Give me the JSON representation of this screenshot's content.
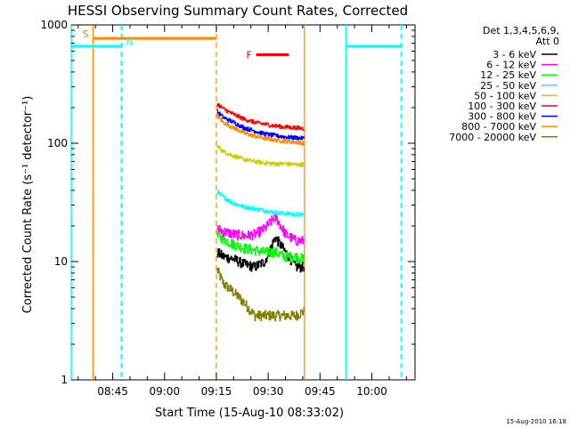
{
  "chart_data": {
    "type": "line",
    "title": "HESSI Observing Summary Count Rates, Corrected",
    "xlabel": "Start Time (15-Aug-10 08:33:02)",
    "ylabel": "Corrected Count Rate (s⁻¹ detector⁻¹)",
    "y_scale": "log",
    "ylim": [
      1,
      1000
    ],
    "y_ticks": [
      {
        "value": 1,
        "label": "1"
      },
      {
        "value": 10,
        "label": "10"
      },
      {
        "value": 100,
        "label": "100"
      },
      {
        "value": 1000,
        "label": "1000"
      }
    ],
    "x_ticks_minutes": [
      {
        "value": 525,
        "label": "08:45"
      },
      {
        "value": 540,
        "label": "09:00"
      },
      {
        "value": 555,
        "label": "09:15"
      },
      {
        "value": 570,
        "label": "09:30"
      },
      {
        "value": 585,
        "label": "09:45"
      },
      {
        "value": 600,
        "label": "10:00"
      }
    ],
    "xlim_minutes": [
      513.0,
      612.5
    ],
    "legend": {
      "header": [
        "Det 1,3,4,5,6,9,",
        "Att 0"
      ],
      "placement": "right-outside"
    },
    "series": [
      {
        "name": "3 - 6 keV",
        "color": "#000000",
        "x": [
          555.2,
          557,
          560,
          563,
          566,
          569,
          572,
          575,
          578,
          580.3
        ],
        "y": [
          12,
          11,
          10.5,
          9.5,
          9,
          10,
          16,
          12,
          9,
          9
        ]
      },
      {
        "name": "6 - 12 keV",
        "color": "#ff00ff",
        "x": [
          555.2,
          557,
          560,
          563,
          566,
          569,
          572,
          575,
          578,
          580.3
        ],
        "y": [
          19,
          18,
          17,
          16.5,
          17,
          19,
          24,
          17,
          15,
          15
        ]
      },
      {
        "name": "12 - 25 keV",
        "color": "#00ff00",
        "x": [
          555.2,
          557,
          560,
          563,
          566,
          569,
          572,
          575,
          578,
          580.3
        ],
        "y": [
          16.5,
          15.5,
          14,
          13,
          12.5,
          12,
          12,
          11,
          11,
          10.5
        ]
      },
      {
        "name": "25 - 50 keV",
        "color": "#00ffff",
        "x": [
          555.2,
          557,
          560,
          563,
          566,
          569,
          572,
          575,
          578,
          580.3
        ],
        "y": [
          39,
          35,
          31,
          29,
          28,
          27,
          26,
          25.5,
          25,
          25
        ]
      },
      {
        "name": "50 - 100 keV",
        "color": "#cccc00",
        "x": [
          555.2,
          557,
          560,
          563,
          566,
          569,
          572,
          575,
          578,
          580.3
        ],
        "y": [
          95,
          85,
          78,
          73,
          70,
          68,
          67,
          67,
          66,
          66
        ]
      },
      {
        "name": "100 - 300 keV",
        "color": "#ff0000",
        "x": [
          555.2,
          557,
          560,
          563,
          566,
          569,
          572,
          575,
          578,
          580.3
        ],
        "y": [
          215,
          195,
          175,
          160,
          150,
          145,
          140,
          137,
          135,
          133
        ]
      },
      {
        "name": "300 - 800 keV",
        "color": "#0000ff",
        "x": [
          555.2,
          557,
          560,
          563,
          566,
          569,
          572,
          575,
          578,
          580.3
        ],
        "y": [
          185,
          165,
          150,
          135,
          127,
          120,
          116,
          113,
          111,
          110
        ]
      },
      {
        "name": "800 - 7000 keV",
        "color": "#ff8800",
        "x": [
          555.2,
          557,
          560,
          563,
          566,
          569,
          572,
          575,
          578,
          580.3
        ],
        "y": [
          170,
          150,
          135,
          122,
          115,
          110,
          106,
          104,
          102,
          100
        ]
      },
      {
        "name": "7000 - 20000 keV",
        "color": "#808000",
        "x": [
          555.2,
          557,
          560,
          563,
          566,
          569,
          572,
          575,
          578,
          580.3
        ],
        "y": [
          8.5,
          6.5,
          5.5,
          4.5,
          3.5,
          3.5,
          3.5,
          3.5,
          3.5,
          3.8
        ]
      }
    ],
    "flag_bars": [
      {
        "label": "S",
        "color": "#ff8800",
        "x0": 519.3,
        "x1": 555.0,
        "y": 770
      },
      {
        "label": "N",
        "color": "#00ffff",
        "x0": 513.0,
        "x1": 527.5,
        "y": 660
      },
      {
        "label": "F",
        "color": "#ff0000",
        "x0": 566.5,
        "x1": 576.0,
        "y": 560
      },
      {
        "label": "",
        "color": "#00ffff",
        "x0": 592.5,
        "x1": 608.5,
        "y": 660
      }
    ],
    "vertical_lines": [
      {
        "x": 513.0,
        "color": "#00ffff",
        "dashed": false
      },
      {
        "x": 519.3,
        "color": "#ff8800",
        "dashed": false
      },
      {
        "x": 527.5,
        "color": "#00ffff",
        "dashed": true
      },
      {
        "x": 555.0,
        "color": "#ff8800",
        "dashed": true
      },
      {
        "x": 580.5,
        "color": "#ff8800",
        "dashed": false
      },
      {
        "x": 592.5,
        "color": "#00ffff",
        "dashed": false
      },
      {
        "x": 608.5,
        "color": "#00ffff",
        "dashed": true
      }
    ]
  },
  "footer": {
    "timestamp": "15-Aug-2010 16:18"
  }
}
